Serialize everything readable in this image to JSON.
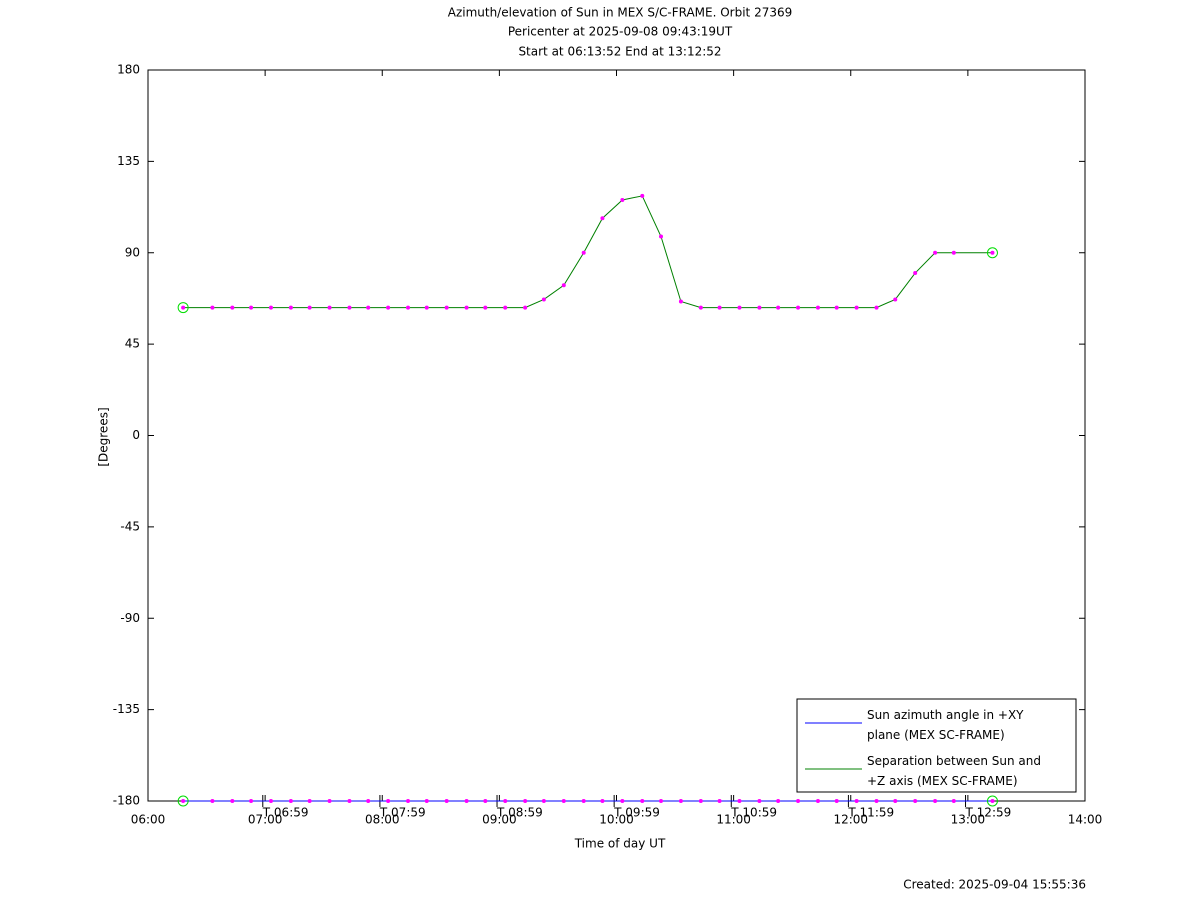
{
  "chart_data": {
    "type": "line",
    "title": "Azimuth/elevation of Sun in MEX S/C-FRAME.  Orbit 27369",
    "subtitle": "Pericenter at 2025-09-08 09:43:19UT",
    "subtitle2": "Start at 06:13:52 End at 13:12:52",
    "xlabel": "Time of day UT",
    "ylabel": "[Degrees]",
    "footer": "Created: 2025-09-04 15:55:36",
    "xlim": [
      6,
      14
    ],
    "xticks": [
      {
        "value": 6,
        "label": "06:00"
      },
      {
        "value": 7,
        "label": "07:00"
      },
      {
        "value": 8,
        "label": "08:00"
      },
      {
        "value": 9,
        "label": "09:00"
      },
      {
        "value": 10,
        "label": "10:00"
      },
      {
        "value": 11,
        "label": "11:00"
      },
      {
        "value": 12,
        "label": "12:00"
      },
      {
        "value": 13,
        "label": "13:00"
      },
      {
        "value": 14,
        "label": "14:00"
      }
    ],
    "hour_marks": [
      {
        "value": 6.98,
        "label": "T 06:59"
      },
      {
        "value": 7.98,
        "label": "T 07:59"
      },
      {
        "value": 8.98,
        "label": "T 08:59"
      },
      {
        "value": 9.98,
        "label": "T 09:59"
      },
      {
        "value": 10.98,
        "label": "T 10:59"
      },
      {
        "value": 11.98,
        "label": "T 11:59"
      },
      {
        "value": 12.98,
        "label": "T 12:59"
      }
    ],
    "ylim": [
      -180,
      180
    ],
    "yticks": [
      -180,
      -135,
      -90,
      -45,
      0,
      45,
      90,
      135,
      180
    ],
    "marker_color": "#ff00ff",
    "x": [
      6.3,
      6.55,
      6.72,
      6.88,
      7.05,
      7.22,
      7.38,
      7.55,
      7.72,
      7.88,
      8.05,
      8.22,
      8.38,
      8.55,
      8.72,
      8.88,
      9.05,
      9.22,
      9.38,
      9.55,
      9.72,
      9.88,
      10.05,
      10.22,
      10.38,
      10.55,
      10.72,
      10.88,
      11.05,
      11.22,
      11.38,
      11.55,
      11.72,
      11.88,
      12.05,
      12.22,
      12.38,
      12.55,
      12.72,
      12.88,
      13.21
    ],
    "series": [
      {
        "name": "Sun azimuth angle in +XY plane (MEX SC-FRAME)",
        "color": "#0000ff",
        "values": [
          -180,
          -180,
          -180,
          -180,
          -180,
          -180,
          -180,
          -180,
          -180,
          -180,
          -180,
          -180,
          -180,
          -180,
          -180,
          -180,
          -180,
          -180,
          -180,
          -180,
          -180,
          -180,
          -180,
          -180,
          -180,
          -180,
          -180,
          -180,
          -180,
          -180,
          -180,
          -180,
          -180,
          -180,
          -180,
          -180,
          -180,
          -180,
          -180,
          -180,
          -180
        ]
      },
      {
        "name": "Separation between Sun and +Z axis (MEX SC-FRAME)",
        "color": "#008000",
        "values": [
          63,
          63,
          63,
          63,
          63,
          63,
          63,
          63,
          63,
          63,
          63,
          63,
          63,
          63,
          63,
          63,
          63,
          63,
          67,
          74,
          90,
          107,
          116,
          118,
          98,
          66,
          63,
          63,
          63,
          63,
          63,
          63,
          63,
          63,
          63,
          63,
          67,
          80,
          90,
          90,
          90
        ]
      }
    ],
    "legend": "lower right"
  }
}
